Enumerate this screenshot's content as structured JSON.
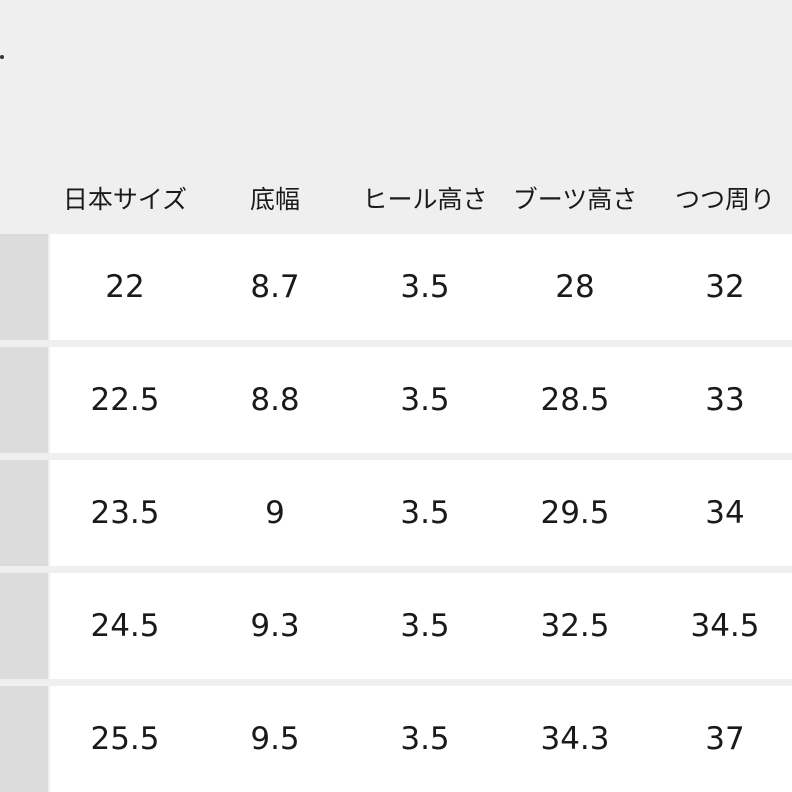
{
  "table": {
    "headers": [
      "日本サイズ",
      "底幅",
      "ヒール高さ",
      "ブーツ高さ",
      "つつ周り"
    ],
    "rows": [
      [
        "22",
        "8.7",
        "3.5",
        "28",
        "32"
      ],
      [
        "22.5",
        "8.8",
        "3.5",
        "28.5",
        "33"
      ],
      [
        "23.5",
        "9",
        "3.5",
        "29.5",
        "34"
      ],
      [
        "24.5",
        "9.3",
        "3.5",
        "32.5",
        "34.5"
      ],
      [
        "25.5",
        "9.5",
        "3.5",
        "34.3",
        "37"
      ]
    ]
  },
  "colors": {
    "background": "#efefef",
    "row_label": "#dcdcdc",
    "cell": "#ffffff"
  }
}
